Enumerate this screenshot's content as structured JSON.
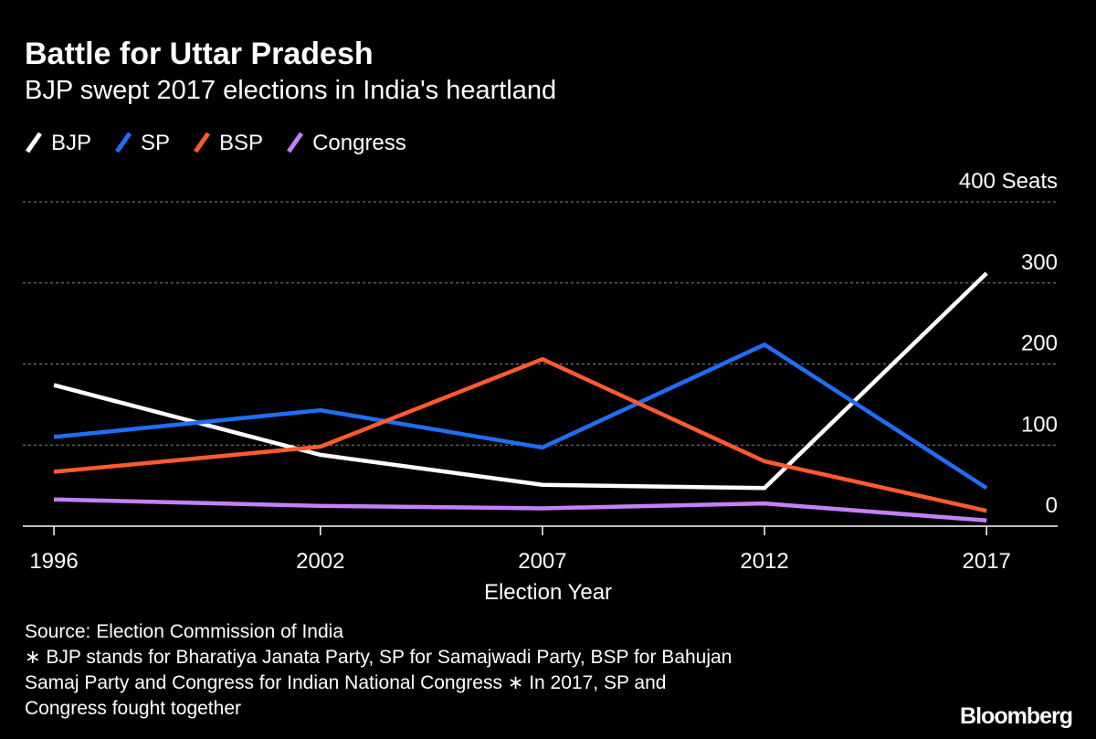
{
  "chart_data": {
    "type": "line",
    "title": "Battle for Uttar Pradesh",
    "subtitle": "BJP swept 2017 elections in India's heartland",
    "x_label": "Election Year",
    "x": [
      1996,
      2002,
      2007,
      2012,
      2017
    ],
    "xlim": [
      1995.3,
      2018.6
    ],
    "xticks": [
      1996,
      2002,
      2007,
      2012,
      2017
    ],
    "ylim": [
      0,
      400
    ],
    "yticks": [
      0,
      100,
      200,
      300,
      {
        "value": 400,
        "label": "400 Seats"
      }
    ],
    "grid": true,
    "legend": "top-left",
    "series": [
      {
        "name": "BJP",
        "color": "#ffffff",
        "values": [
          174,
          88,
          51,
          47,
          312
        ]
      },
      {
        "name": "SP",
        "color": "#1f6ff5",
        "values": [
          110,
          143,
          97,
          224,
          47
        ]
      },
      {
        "name": "BSP",
        "color": "#ff5b2e",
        "values": [
          67,
          98,
          206,
          80,
          19
        ]
      },
      {
        "name": "Congress",
        "color": "#c580ff",
        "values": [
          33,
          25,
          22,
          28,
          7
        ]
      }
    ],
    "source": "Source: Election Commission of India",
    "notes": [
      "∗ BJP stands for Bharatiya Janata Party, SP for Samajwadi Party, BSP for Bahujan",
      "Samaj Party and Congress for Indian National Congress ∗ In 2017, SP and",
      "Congress fought together"
    ],
    "brand": "Bloomberg"
  }
}
